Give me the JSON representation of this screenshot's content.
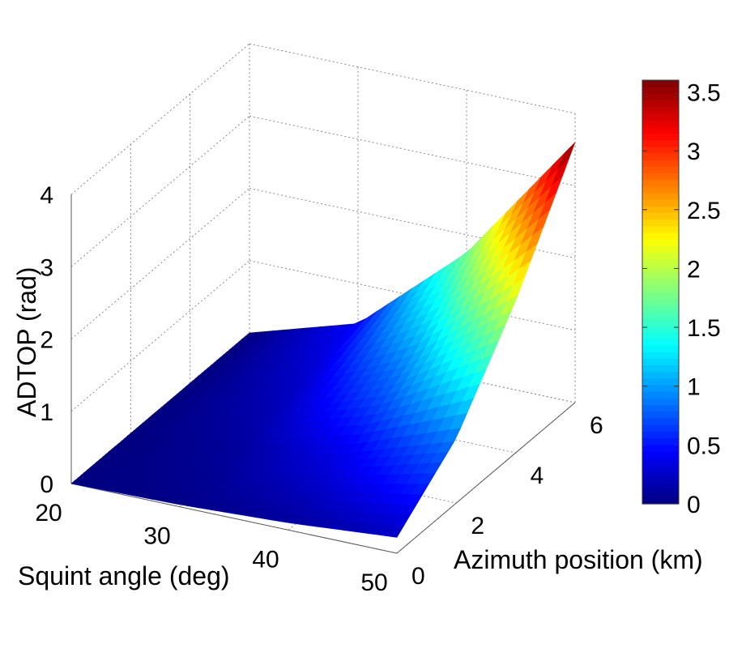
{
  "chart_data": {
    "type": "surface3d",
    "xlabel": "Squint angle (deg)",
    "ylabel": "Azimuth position (km)",
    "zlabel": "ADTOP (rad)",
    "x_range": [
      20,
      50
    ],
    "y_range": [
      0,
      6
    ],
    "z_range": [
      0,
      4
    ],
    "x_ticks": [
      "20",
      "30",
      "40",
      "50"
    ],
    "y_ticks": [
      "0",
      "2",
      "4",
      "6"
    ],
    "z_ticks": [
      "0",
      "1",
      "2",
      "3",
      "4"
    ],
    "grid": true,
    "colormap": "jet",
    "colorbar": {
      "range": [
        0,
        3.6
      ],
      "ticks": [
        "0",
        "0.5",
        "1",
        "1.5",
        "2",
        "2.5",
        "3",
        "3.5"
      ],
      "location": "right"
    },
    "surface": {
      "grid_x_deg": [
        20,
        30,
        40,
        50
      ],
      "grid_y_km": [
        0,
        2,
        4,
        6
      ],
      "z_rad": [
        [
          0.0,
          0.03,
          0.1,
          0.22
        ],
        [
          0.0,
          0.1,
          0.4,
          0.9
        ],
        [
          0.0,
          0.25,
          0.95,
          2.1
        ],
        [
          0.0,
          0.45,
          1.75,
          3.6
        ]
      ]
    }
  }
}
